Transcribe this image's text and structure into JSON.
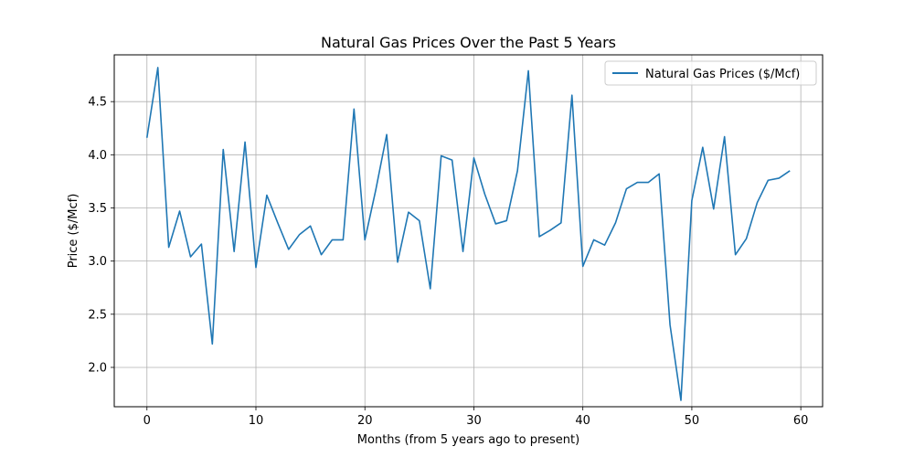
{
  "chart_data": {
    "type": "line",
    "title": "Natural Gas Prices Over the Past 5 Years",
    "xlabel": "Months (from 5 years ago to present)",
    "ylabel": "Price ($/Mcf)",
    "xlim": [
      -3,
      62
    ],
    "ylim": [
      1.63,
      4.94
    ],
    "xticks": [
      0,
      10,
      20,
      30,
      40,
      50,
      60
    ],
    "yticks": [
      2.0,
      2.5,
      3.0,
      3.5,
      4.0,
      4.5
    ],
    "xtick_labels": [
      "0",
      "10",
      "20",
      "30",
      "40",
      "50",
      "60"
    ],
    "ytick_labels": [
      "2.0",
      "2.5",
      "3.0",
      "3.5",
      "4.0",
      "4.5"
    ],
    "grid": true,
    "legend_position": "top-right",
    "series": [
      {
        "name": "Natural Gas Prices ($/Mcf)",
        "color": "#1f77b4",
        "x": [
          0,
          1,
          2,
          3,
          4,
          5,
          6,
          7,
          8,
          9,
          10,
          11,
          12,
          13,
          14,
          15,
          16,
          17,
          18,
          19,
          20,
          21,
          22,
          23,
          24,
          25,
          26,
          27,
          28,
          29,
          30,
          31,
          32,
          33,
          34,
          35,
          36,
          37,
          38,
          39,
          40,
          41,
          42,
          43,
          44,
          45,
          46,
          47,
          48,
          49,
          50,
          51,
          52,
          53,
          54,
          55,
          56,
          57,
          58,
          59
        ],
        "values": [
          4.16,
          4.82,
          3.13,
          3.47,
          3.04,
          3.16,
          2.22,
          4.05,
          3.09,
          4.12,
          2.94,
          3.62,
          3.36,
          3.11,
          3.25,
          3.33,
          3.06,
          3.2,
          3.2,
          4.43,
          3.2,
          3.67,
          4.19,
          2.99,
          3.46,
          3.38,
          2.74,
          3.99,
          3.95,
          3.09,
          3.97,
          3.63,
          3.35,
          3.38,
          3.85,
          4.79,
          3.23,
          3.29,
          3.36,
          4.56,
          2.95,
          3.2,
          3.15,
          3.36,
          3.68,
          3.74,
          3.74,
          3.82,
          2.4,
          1.69,
          3.57,
          4.07,
          3.49,
          4.17,
          3.06,
          3.21,
          3.55,
          3.76,
          3.78,
          3.85
        ]
      }
    ]
  }
}
